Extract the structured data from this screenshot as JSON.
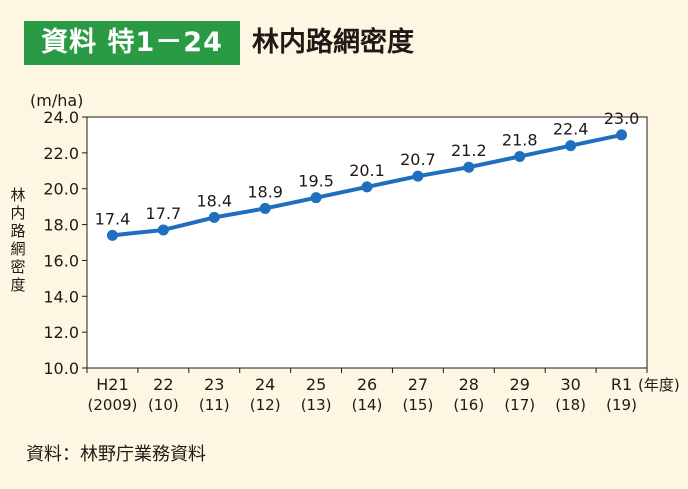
{
  "header": {
    "label": "資料 特1－24",
    "title": "林内路網密度"
  },
  "source": "資料：林野庁業務資料",
  "colors": {
    "badge": "#2b9a44",
    "series": "#1f6fbe",
    "background": "#fdf6e3",
    "plot_area": "#ffffff"
  },
  "chart_data": {
    "type": "line",
    "title": "林内路網密度",
    "ylabel": "林内路網密度",
    "yunit": "(m/ha)",
    "xunit": "(年度)",
    "ylim": [
      10.0,
      24.0
    ],
    "yticks": [
      "10.0",
      "12.0",
      "14.0",
      "16.0",
      "18.0",
      "20.0",
      "22.0",
      "24.0"
    ],
    "categories": [
      "H21",
      "22",
      "23",
      "24",
      "25",
      "26",
      "27",
      "28",
      "29",
      "30",
      "R1"
    ],
    "categories_sub": [
      "(2009)",
      "(10)",
      "(11)",
      "(12)",
      "(13)",
      "(14)",
      "(15)",
      "(16)",
      "(17)",
      "(18)",
      "(19)"
    ],
    "grid": false,
    "series": [
      {
        "values": [
          17.4,
          17.7,
          18.4,
          18.9,
          19.5,
          20.1,
          20.7,
          21.2,
          21.8,
          22.4,
          23.0
        ],
        "labels": [
          "17.4",
          "17.7",
          "18.4",
          "18.9",
          "19.5",
          "20.1",
          "20.7",
          "21.2",
          "21.8",
          "22.4",
          "23.0"
        ]
      }
    ]
  }
}
